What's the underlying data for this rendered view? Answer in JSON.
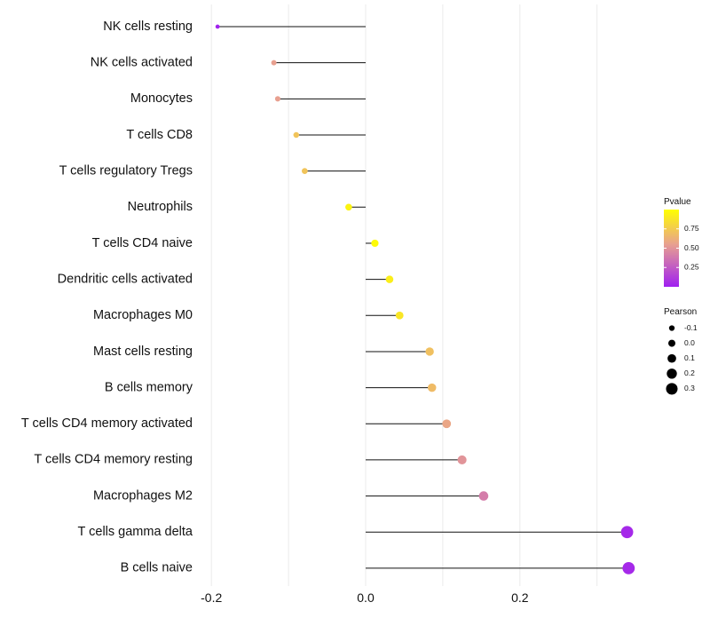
{
  "chart_data": {
    "type": "lollipop",
    "title": "",
    "xlabel": "",
    "ylabel": "",
    "xlim": [
      -0.2,
      0.35
    ],
    "x_ticks": [
      {
        "value": -0.2,
        "label": "-0.2"
      },
      {
        "value": 0.0,
        "label": "0.0"
      },
      {
        "value": 0.2,
        "label": "0.2"
      }
    ],
    "categories": [
      "NK cells resting",
      "NK cells activated",
      "Monocytes",
      "T cells CD8",
      "T cells regulatory  Tregs ",
      "Neutrophils",
      "T cells CD4 naive",
      "Dendritic cells activated",
      "Macrophages M0",
      "Mast cells resting",
      "B cells memory",
      "T cells CD4 memory activated",
      "T cells CD4 memory resting",
      "Macrophages M2",
      "T cells gamma delta",
      "B cells naive"
    ],
    "series": [
      {
        "name": "Pearson",
        "values": [
          -0.192,
          -0.119,
          -0.114,
          -0.09,
          -0.079,
          -0.022,
          0.012,
          0.031,
          0.044,
          0.083,
          0.086,
          0.105,
          0.125,
          0.153,
          0.339,
          0.341
        ]
      },
      {
        "name": "Pvalue",
        "values": [
          0.01,
          0.55,
          0.55,
          0.72,
          0.72,
          0.95,
          0.98,
          0.92,
          0.88,
          0.7,
          0.68,
          0.58,
          0.5,
          0.4,
          0.04,
          0.04
        ]
      }
    ],
    "legend_color": {
      "title": "Pvalue",
      "ticks": [
        {
          "value": 0.25,
          "label": "0.25"
        },
        {
          "value": 0.5,
          "label": "0.50"
        },
        {
          "value": 0.75,
          "label": "0.75"
        }
      ],
      "range": [
        0.0,
        1.0
      ],
      "color_low": "#a020f0",
      "color_mid": "#e8a090",
      "color_high": "#ffff00"
    },
    "legend_size": {
      "title": "Pearson",
      "entries": [
        {
          "value": -0.1,
          "label": "-0.1"
        },
        {
          "value": 0.0,
          "label": "0.0"
        },
        {
          "value": 0.1,
          "label": "0.1"
        },
        {
          "value": 0.2,
          "label": "0.2"
        },
        {
          "value": 0.3,
          "label": "0.3"
        }
      ]
    },
    "legend_placement": "right",
    "grid": "vertical",
    "baseline": 0.0
  }
}
